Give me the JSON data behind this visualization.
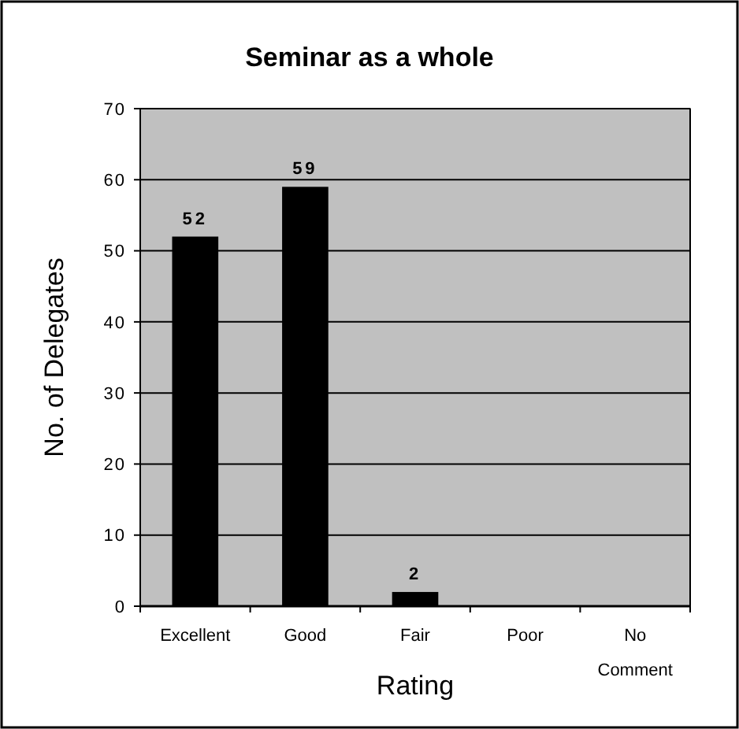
{
  "chart_data": {
    "type": "bar",
    "title": "Seminar as a whole",
    "xlabel": "Rating",
    "ylabel": "No. of Delegates",
    "categories": [
      "Excellent",
      "Good",
      "Fair",
      "Poor",
      "No Comment"
    ],
    "values": [
      52,
      59,
      2,
      0,
      0
    ],
    "value_labels": [
      "52",
      "59",
      "2",
      null,
      null
    ],
    "color": "#000000",
    "ylim": [
      0,
      70
    ],
    "yticks": [
      0,
      10,
      20,
      30,
      40,
      50,
      60,
      70
    ],
    "grid": "y"
  }
}
